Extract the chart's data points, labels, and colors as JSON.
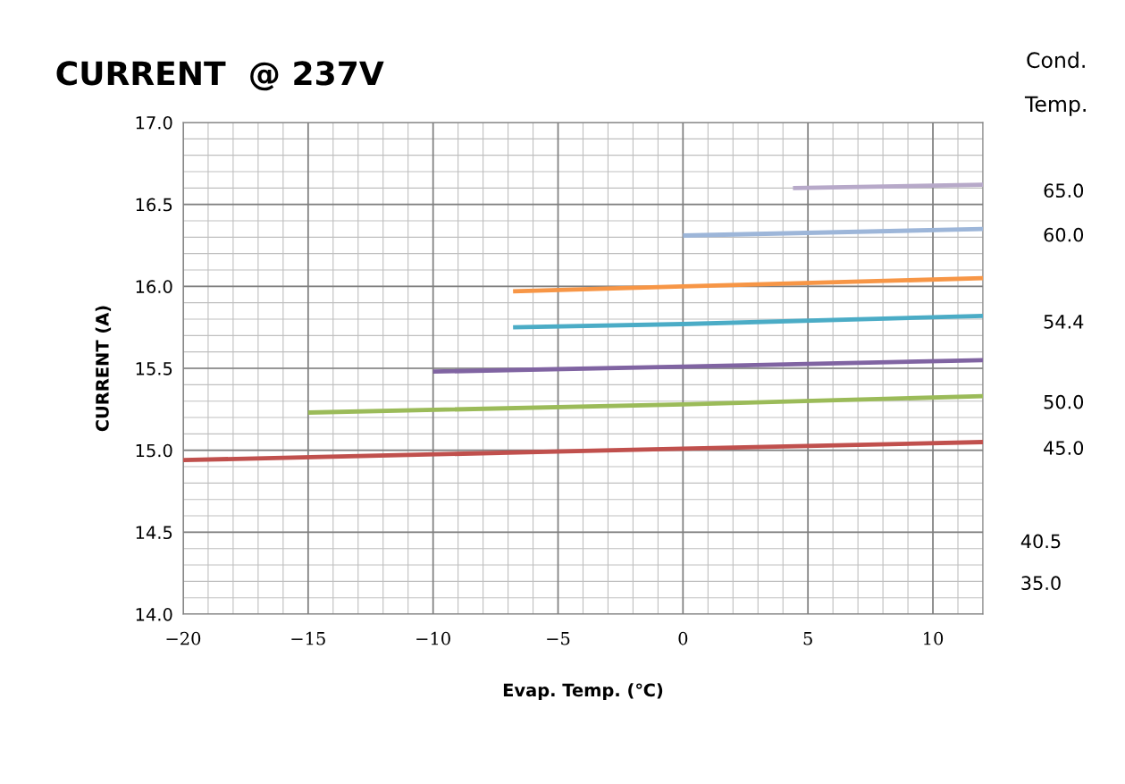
{
  "chart_data": {
    "type": "line",
    "title": "CURRENT  @ 237V",
    "xlabel": "Evap. Temp. (℃)",
    "ylabel": "CURRENT (A)",
    "legend_title": "Cond. Temp.",
    "xlim": [
      -20,
      12
    ],
    "ylim": [
      14,
      17
    ],
    "xticks": [
      {
        "value": -20,
        "label": "−20"
      },
      {
        "value": -15,
        "label": "−15"
      },
      {
        "value": -10,
        "label": "−10"
      },
      {
        "value": -5,
        "label": "−5"
      },
      0,
      5,
      10
    ],
    "yticks": [
      {
        "value": 14,
        "label": "14.0"
      },
      {
        "value": 14.5,
        "label": "14.5"
      },
      {
        "value": 15,
        "label": "15.0"
      },
      {
        "value": 15.5,
        "label": "15.5"
      },
      {
        "value": 16,
        "label": "16.0"
      },
      {
        "value": 16.5,
        "label": "16.5"
      },
      {
        "value": 17,
        "label": "17.0"
      }
    ],
    "grid": true,
    "marker": "none",
    "line_style": "solid",
    "series": [
      {
        "name": "65.0",
        "color": "#b7a9c9",
        "x": [
          4.4,
          12
        ],
        "values": [
          16.6,
          16.62
        ]
      },
      {
        "name": "60.0",
        "color": "#9db6d9",
        "x": [
          0,
          12
        ],
        "values": [
          16.31,
          16.35
        ]
      },
      {
        "color": "#f79646",
        "x": [
          -6.8,
          0,
          12
        ],
        "values": [
          15.97,
          16.0,
          16.05
        ]
      },
      {
        "name": "54.4",
        "color": "#4bacc6",
        "x": [
          -6.8,
          0,
          12
        ],
        "values": [
          15.75,
          15.77,
          15.82
        ]
      },
      {
        "color": "#8064a2",
        "x": [
          -10,
          0,
          12
        ],
        "values": [
          15.48,
          15.51,
          15.55
        ]
      },
      {
        "name": "50.0",
        "color": "#9bbb59",
        "x": [
          -15,
          0,
          12
        ],
        "values": [
          15.23,
          15.28,
          15.33
        ]
      },
      {
        "name": "45.0",
        "color": "#c0504d",
        "x": [
          -20,
          0,
          12
        ],
        "values": [
          14.94,
          15.01,
          15.05
        ]
      }
    ],
    "annotations": [
      "40.5",
      "35.0"
    ]
  }
}
